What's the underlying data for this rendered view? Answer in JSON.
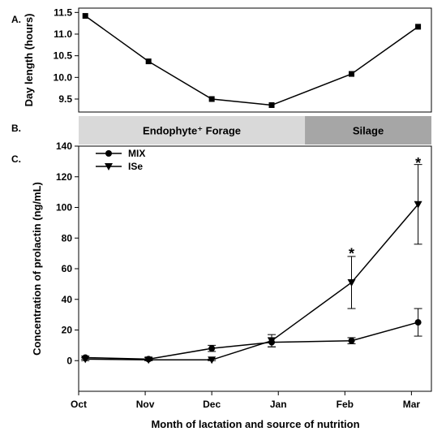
{
  "panels": {
    "a": "A.",
    "b": "B.",
    "c": "C."
  },
  "nutrition_bands": [
    {
      "label": "Endophyte⁺ Forage",
      "color": "#d9d9d9",
      "from": 0,
      "to": 3.4
    },
    {
      "label": "Silage",
      "color": "#a6a6a6",
      "from": 3.4,
      "to": 5.3
    }
  ],
  "chart_data": [
    {
      "type": "line",
      "ylabel": "Day length (hours)",
      "xlim": [
        0,
        5.3
      ],
      "ylim": [
        9.2,
        11.6
      ],
      "yticks": [
        9.5,
        10.0,
        10.5,
        11.0,
        11.5
      ],
      "ytick_labels": [
        "9.5",
        "10.0",
        "10.5",
        "11.0",
        "11.5"
      ],
      "series": [
        {
          "x": [
            0.1,
            1.05,
            2.0,
            2.9,
            4.1,
            5.1
          ],
          "values": [
            11.42,
            10.37,
            9.5,
            9.36,
            10.08,
            11.17
          ],
          "marker": "square"
        }
      ]
    },
    {
      "type": "line",
      "xlabel": "Month of lactation and source of nutrition",
      "ylabel": "Concentration of prolactin (ng/mL)",
      "categories": [
        "Oct",
        "Nov",
        "Dec",
        "Jan",
        "Feb",
        "Mar"
      ],
      "xticks": [
        0,
        1,
        2,
        3,
        4,
        5
      ],
      "xlim": [
        0,
        5.3
      ],
      "ylim": [
        -20,
        140
      ],
      "yticks": [
        0,
        20,
        40,
        60,
        80,
        100,
        120,
        140
      ],
      "ytick_labels": [
        "0",
        "20",
        "40",
        "60",
        "80",
        "100",
        "120",
        "140"
      ],
      "legend_position": "top-left",
      "series": [
        {
          "name": "MIX",
          "marker": "circle",
          "x": [
            0.1,
            1.05,
            2.0,
            2.9,
            4.1,
            5.1
          ],
          "values": [
            2,
            1,
            8,
            12,
            13,
            25
          ],
          "errors": [
            1,
            1,
            2,
            3,
            2,
            9
          ]
        },
        {
          "name": "ISe",
          "marker": "triangle-down",
          "x": [
            0.1,
            1.05,
            2.0,
            2.9,
            4.1,
            5.1
          ],
          "values": [
            1,
            0.5,
            0.5,
            13,
            51,
            102
          ],
          "errors": [
            1,
            0.5,
            0.5,
            4,
            17,
            26
          ]
        }
      ],
      "annotations": [
        {
          "text": "*",
          "x": 4.1,
          "y": 72
        },
        {
          "text": "*",
          "x": 5.1,
          "y": 131
        }
      ]
    }
  ]
}
